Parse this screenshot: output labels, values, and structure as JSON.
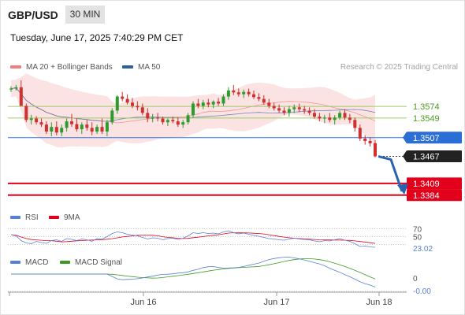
{
  "header": {
    "pair": "GBP/USD",
    "timeframe": "30 MIN",
    "datetime": "Tuesday, June 17, 2025 7:40:29 PM CET"
  },
  "legend": {
    "ma20": {
      "label": "MA 20 + Bollinger Bands",
      "color": "#f08080"
    },
    "ma50": {
      "label": "MA 50",
      "color": "#2f5f9e"
    },
    "research": "Research © 2025 Trading Central"
  },
  "colors": {
    "up": "#2e9b2e",
    "down": "#d0302f",
    "band_fill": "#fbe0e0",
    "resistance": "#9ccc65",
    "pivot": "#2b6fd6",
    "support": "#e3001b",
    "arrow": "#2962ad"
  },
  "chart_data": [
    {
      "type": "candlestick",
      "name": "price",
      "ylim": [
        1.336,
        1.365
      ],
      "ohlc_approx": [
        [
          1.361,
          1.3617,
          1.3605,
          1.3612
        ],
        [
          1.3612,
          1.362,
          1.3608,
          1.3615
        ],
        [
          1.3615,
          1.363,
          1.36,
          1.3575
        ],
        [
          1.3575,
          1.358,
          1.354,
          1.3545
        ],
        [
          1.3545,
          1.3556,
          1.3535,
          1.3548
        ],
        [
          1.3548,
          1.3553,
          1.3535,
          1.354
        ],
        [
          1.354,
          1.3548,
          1.353,
          1.3535
        ],
        [
          1.3535,
          1.3542,
          1.3515,
          1.352
        ],
        [
          1.352,
          1.354,
          1.351,
          1.353
        ],
        [
          1.353,
          1.3542,
          1.3512,
          1.3518
        ],
        [
          1.3518,
          1.3535,
          1.351,
          1.3528
        ],
        [
          1.3528,
          1.3548,
          1.352,
          1.3542
        ],
        [
          1.3542,
          1.3558,
          1.353,
          1.3536
        ],
        [
          1.3536,
          1.3548,
          1.352,
          1.3525
        ],
        [
          1.3525,
          1.354,
          1.3515,
          1.3535
        ],
        [
          1.3535,
          1.3545,
          1.3522,
          1.3528
        ],
        [
          1.3528,
          1.354,
          1.3512,
          1.352
        ],
        [
          1.352,
          1.3535,
          1.3515,
          1.353
        ],
        [
          1.353,
          1.3548,
          1.3515,
          1.352
        ],
        [
          1.352,
          1.3545,
          1.351,
          1.354
        ],
        [
          1.354,
          1.357,
          1.3535,
          1.3565
        ],
        [
          1.3565,
          1.3598,
          1.3558,
          1.3595
        ],
        [
          1.3595,
          1.3605,
          1.3585,
          1.359
        ],
        [
          1.359,
          1.36,
          1.3578,
          1.3582
        ],
        [
          1.3582,
          1.3592,
          1.357,
          1.3575
        ],
        [
          1.3575,
          1.3585,
          1.3565,
          1.3572
        ],
        [
          1.3572,
          1.358,
          1.3555,
          1.356
        ],
        [
          1.356,
          1.357,
          1.354,
          1.3548
        ],
        [
          1.3548,
          1.3558,
          1.354,
          1.355
        ],
        [
          1.355,
          1.356,
          1.3542,
          1.3548
        ],
        [
          1.3548,
          1.3552,
          1.3535,
          1.354
        ],
        [
          1.354,
          1.3548,
          1.3532,
          1.3545
        ],
        [
          1.3545,
          1.3552,
          1.3538,
          1.3542
        ],
        [
          1.3542,
          1.355,
          1.353,
          1.3535
        ],
        [
          1.3535,
          1.3545,
          1.3528,
          1.354
        ],
        [
          1.354,
          1.356,
          1.3535,
          1.3555
        ],
        [
          1.3555,
          1.3585,
          1.355,
          1.358
        ],
        [
          1.358,
          1.359,
          1.357,
          1.3575
        ],
        [
          1.3575,
          1.3588,
          1.3568,
          1.3582
        ],
        [
          1.3582,
          1.359,
          1.3572,
          1.3578
        ],
        [
          1.3578,
          1.3587,
          1.357,
          1.3584
        ],
        [
          1.3584,
          1.3592,
          1.3575,
          1.358
        ],
        [
          1.358,
          1.36,
          1.3575,
          1.3595
        ],
        [
          1.3595,
          1.3615,
          1.3588,
          1.3608
        ],
        [
          1.3608,
          1.362,
          1.3598,
          1.3604
        ],
        [
          1.3604,
          1.3612,
          1.3595,
          1.36
        ],
        [
          1.36,
          1.361,
          1.3592,
          1.3605
        ],
        [
          1.3605,
          1.3612,
          1.3595,
          1.36
        ],
        [
          1.36,
          1.3608,
          1.359,
          1.3594
        ],
        [
          1.3594,
          1.3602,
          1.3585,
          1.359
        ],
        [
          1.359,
          1.3598,
          1.3578,
          1.3582
        ],
        [
          1.3582,
          1.359,
          1.357,
          1.3575
        ],
        [
          1.3575,
          1.3582,
          1.3565,
          1.357
        ],
        [
          1.357,
          1.3578,
          1.356,
          1.3565
        ],
        [
          1.3565,
          1.3572,
          1.3555,
          1.356
        ],
        [
          1.356,
          1.3575,
          1.3552,
          1.3568
        ],
        [
          1.3568,
          1.3578,
          1.356,
          1.3572
        ],
        [
          1.3572,
          1.358,
          1.3562,
          1.3568
        ],
        [
          1.3568,
          1.3575,
          1.3558,
          1.3565
        ],
        [
          1.3565,
          1.3572,
          1.3555,
          1.356
        ],
        [
          1.356,
          1.3568,
          1.3548,
          1.3552
        ],
        [
          1.3552,
          1.356,
          1.3542,
          1.3548
        ],
        [
          1.3548,
          1.3556,
          1.3538,
          1.355
        ],
        [
          1.355,
          1.356,
          1.354,
          1.3545
        ],
        [
          1.3545,
          1.3555,
          1.3535,
          1.355
        ],
        [
          1.355,
          1.3565,
          1.3545,
          1.356
        ],
        [
          1.356,
          1.3568,
          1.3545,
          1.355
        ],
        [
          1.355,
          1.3558,
          1.3538,
          1.3545
        ],
        [
          1.3545,
          1.355,
          1.352,
          1.3528
        ],
        [
          1.3528,
          1.3535,
          1.35,
          1.3505
        ],
        [
          1.3505,
          1.3512,
          1.3492,
          1.35
        ],
        [
          1.35,
          1.3508,
          1.3488,
          1.3495
        ],
        [
          1.3495,
          1.3502,
          1.3465,
          1.3467
        ]
      ],
      "overlays": [
        "ma20",
        "bollinger",
        "ma50"
      ]
    },
    {
      "type": "line",
      "name": "RSI",
      "ticks": [
        70,
        50
      ],
      "latest_value_label": "23.02",
      "series": [
        {
          "name": "RSI",
          "color": "#5a7fd6"
        },
        {
          "name": "9MA",
          "color": "#e3001b"
        }
      ],
      "values_approx": [
        55,
        52,
        40,
        34,
        32,
        38,
        35,
        33,
        40,
        42,
        38,
        45,
        43,
        40,
        44,
        42,
        38,
        45,
        44,
        50,
        58,
        62,
        60,
        56,
        54,
        52,
        48,
        44,
        47,
        46,
        42,
        45,
        46,
        43,
        46,
        52,
        60,
        58,
        60,
        58,
        59,
        57,
        62,
        65,
        60,
        57,
        59,
        56,
        53,
        51,
        48,
        45,
        44,
        42,
        41,
        44,
        46,
        44,
        43,
        42,
        39,
        37,
        40,
        39,
        42,
        45,
        41,
        38,
        32,
        25,
        26,
        24,
        23.02
      ]
    },
    {
      "type": "line",
      "name": "MACD",
      "ticks": [
        0
      ],
      "latest_value_label": "-0.00",
      "series": [
        {
          "name": "MACD",
          "color": "#5a7fd6"
        },
        {
          "name": "MACD Signal",
          "color": "#3d9b22"
        }
      ]
    }
  ],
  "levels": [
    {
      "label": "1.3574",
      "kind": "resistance",
      "value": 1.3574
    },
    {
      "label": "1.3549",
      "kind": "resistance",
      "value": 1.3549
    },
    {
      "label": "1.3507",
      "kind": "pivot",
      "value": 1.3507
    },
    {
      "label": "1.3467",
      "kind": "last",
      "value": 1.3467
    },
    {
      "label": "1.3409",
      "kind": "support",
      "value": 1.3409
    },
    {
      "label": "1.3384",
      "kind": "support",
      "value": 1.3384
    }
  ],
  "x_axis": {
    "labels": [
      "Jun 16",
      "Jun 17",
      "Jun 18"
    ]
  }
}
